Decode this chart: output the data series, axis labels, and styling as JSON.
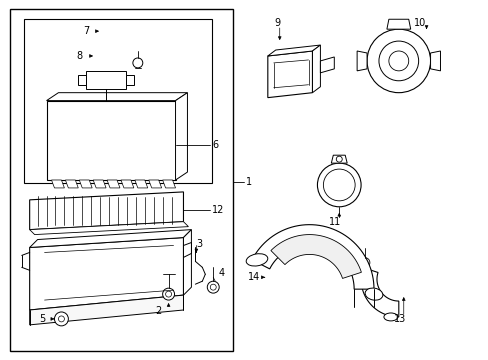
{
  "bg_color": "#ffffff",
  "line_color": "#000000",
  "figsize": [
    4.89,
    3.6
  ],
  "dpi": 100
}
